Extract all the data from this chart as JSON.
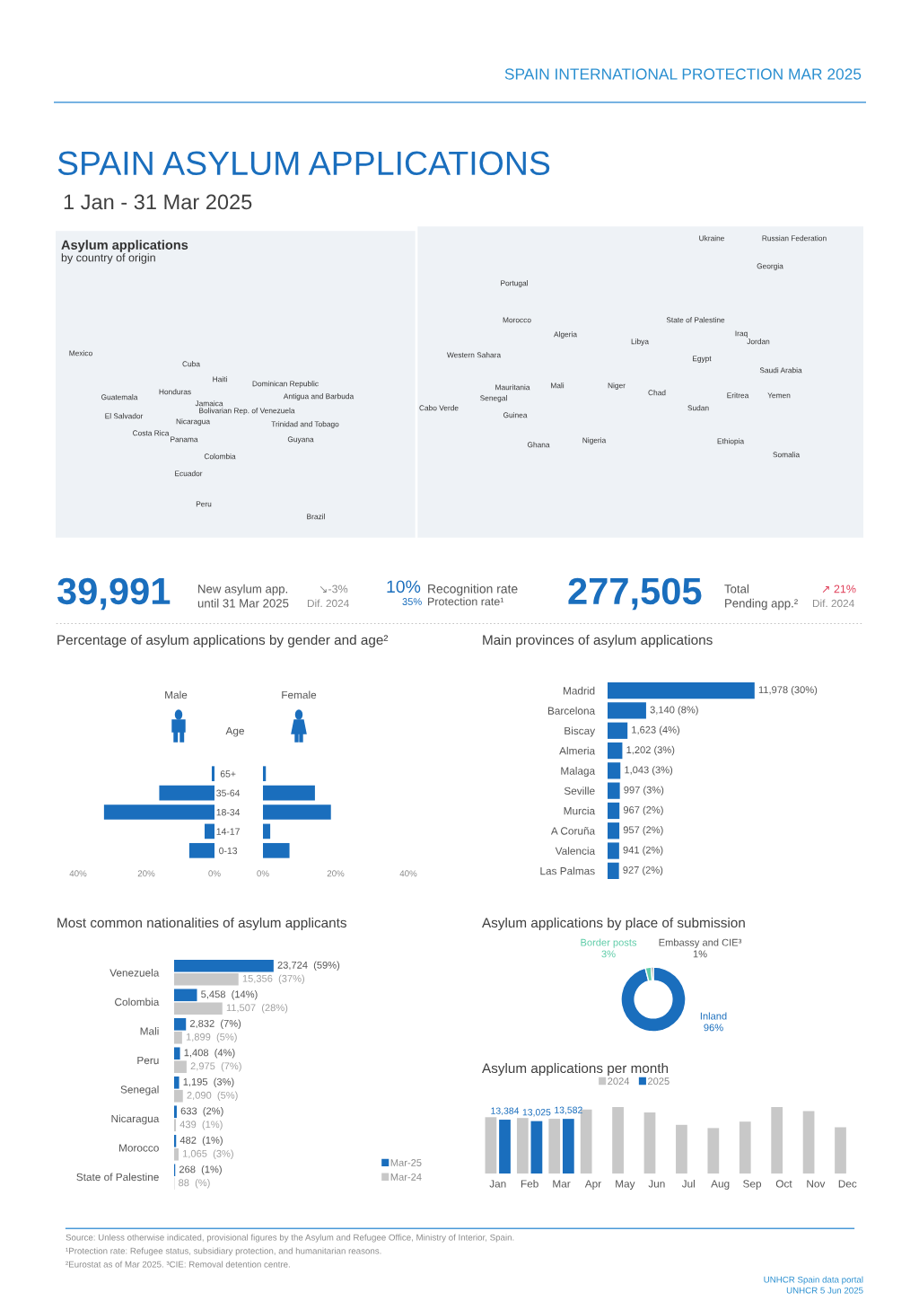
{
  "chart_data": [
    {
      "type": "other",
      "title": "SPAIN ASYLUM APPLICATIONS",
      "subtitle": "1 Jan - 31 Mar 2025",
      "annotations": [
        "SPAIN INTERNATIONAL PROTECTION MAR 2025"
      ]
    },
    {
      "type": "other",
      "title": "Asylum applications",
      "subtitle": "by country of origin",
      "annotations": [
        "Mexico",
        "Cuba",
        "Haiti",
        "Dominican Republic",
        "Honduras",
        "Guatemala",
        "Antigua and Barbuda",
        "Jamaica",
        "Bolivarian Rep. of Venezuela",
        "El Salvador",
        "Nicaragua",
        "Costa Rica",
        "Panama",
        "Trinidad and Tobago",
        "Guyana",
        "Colombia",
        "Ecuador",
        "Peru",
        "Brazil",
        "Portugal",
        "Ukraine",
        "Russian Federation",
        "Georgia",
        "Morocco",
        "Algeria",
        "Libya",
        "Egypt",
        "State of Palestine",
        "Iraq",
        "Jordan",
        "Western Sahara",
        "Mauritania",
        "Mali",
        "Niger",
        "Chad",
        "Sudan",
        "Eritrea",
        "Yemen",
        "Senegal",
        "Cabo Verde",
        "Guinea",
        "Ghana",
        "Nigeria",
        "Ethiopia",
        "Somalia",
        "Saudi Arabia"
      ]
    },
    {
      "type": "other",
      "annotations": [
        "39,991",
        "New asylum app.",
        "until 31 Mar 2025",
        "↘-3%",
        "Dif. 2024",
        "10%",
        "Recognition rate",
        "35%",
        "Protection rate¹",
        "277,505",
        "Total",
        "Pending app.²",
        "↗ 21%",
        "Dif. 2024"
      ]
    },
    {
      "type": "bar",
      "orientation": "horizontal",
      "title": "Percentage of asylum applications by gender and age²",
      "subtitle": "Male",
      "categories": [
        null,
        null,
        null,
        null,
        null
      ],
      "values": [
        0.8,
        16.2,
        32.4,
        2.9,
        7.4
      ],
      "color": "#1a6ebd",
      "xlim": [
        40,
        0
      ],
      "xticks": [
        {
          "value": 40,
          "label": "40%"
        },
        {
          "value": 20,
          "label": "20%"
        },
        {
          "value": 0,
          "label": "0%"
        }
      ],
      "tick_labels": "x"
    },
    {
      "type": "bar",
      "orientation": "horizontal",
      "title": "Female",
      "annotations": [
        "Age"
      ],
      "categories": [
        "65+",
        "35-64",
        "18-34",
        "14-17",
        "0-13"
      ],
      "values": [
        0.8,
        14.3,
        18.7,
        2.0,
        7.3
      ],
      "color": "#1a6ebd",
      "xlim": [
        0,
        40
      ],
      "xticks": [
        {
          "value": 0,
          "label": "0%"
        },
        {
          "value": 20,
          "label": "20%"
        },
        {
          "value": 40,
          "label": "40%"
        }
      ]
    },
    {
      "type": "bar",
      "orientation": "horizontal",
      "title": "Main provinces of asylum applications",
      "categories": [
        "Madrid",
        "Barcelona",
        "Biscay",
        "Almeria",
        "Malaga",
        "Seville",
        "Murcia",
        "A Coruña",
        "Valencia",
        "Las Palmas"
      ],
      "values": [
        11978,
        3140,
        1623,
        1202,
        1043,
        997,
        967,
        957,
        941,
        927
      ],
      "value_labels": [
        "11,978 (30%)",
        "3,140 (8%)",
        "1,623 (4%)",
        "1,202 (3%)",
        "1,043 (3%)",
        "997 (3%)",
        "967 (2%)",
        "957 (2%)",
        "941 (2%)",
        "927 (2%)"
      ],
      "color": "#1a6ebd",
      "tick_labels": "y"
    },
    {
      "type": "bar",
      "orientation": "horizontal",
      "title": "Most common nationalities of asylum applicants",
      "categories": [
        "Venezuela",
        "Colombia",
        "Mali",
        "Peru",
        "Senegal",
        "Nicaragua",
        "Morocco",
        "State of Palestine"
      ],
      "legend": "bottom right",
      "tick_labels": "y",
      "series": [
        {
          "name": "Mar-25",
          "color": "#1a6ebd",
          "values": [
            23724,
            5458,
            2832,
            1408,
            1195,
            633,
            482,
            268
          ],
          "value_labels": [
            "23,724  (59%)",
            "5,458  (14%)",
            "2,832  (7%)",
            "1,408  (4%)",
            "1,195  (3%)",
            "633  (2%)",
            "482  (1%)",
            "268  (1%)"
          ]
        },
        {
          "name": "Mar-24",
          "color": "#c8c8c8",
          "values": [
            15356,
            11507,
            1899,
            2975,
            2090,
            439,
            1065,
            88
          ],
          "value_labels": [
            "15,356  (37%)",
            "11,507  (28%)",
            "1,899  (5%)",
            "2,975  (7%)",
            "2,090  (5%)",
            "439  (1%)",
            "1,065  (3%)",
            "88  (%)"
          ]
        }
      ]
    },
    {
      "type": "donut",
      "title": "Asylum applications by place of submission",
      "categories": [
        "Inland",
        "Border posts",
        "Embassy and CIE³"
      ],
      "values": [
        96,
        3,
        1
      ],
      "value_labels": [
        "96%",
        "3%",
        "1%"
      ],
      "colors": [
        "#1a6ebd",
        "#5fcca8",
        "#666666"
      ]
    },
    {
      "type": "bar",
      "title": "Asylum applications per month",
      "categories": [
        "Jan",
        "Feb",
        "Mar",
        "Apr",
        "May",
        "Jun",
        "Jul",
        "Aug",
        "Sep",
        "Oct",
        "Nov",
        "Dec"
      ],
      "legend": "top",
      "tick_labels": "x",
      "series": [
        {
          "name": "2024",
          "color": "#c8c8c8",
          "values": [
            14000,
            13800,
            13600,
            15900,
            16500,
            15200,
            12100,
            11300,
            12900,
            16500,
            15500,
            11500
          ]
        },
        {
          "name": "2025",
          "color": "#1a6ebd",
          "values": [
            13384,
            13025,
            13582,
            null,
            null,
            null,
            null,
            null,
            null,
            null,
            null,
            null
          ],
          "value_labels": [
            "13,384",
            "13,025",
            "13,582",
            null,
            null,
            null,
            null,
            null,
            null,
            null,
            null,
            null
          ]
        }
      ]
    },
    {
      "type": "other",
      "annotations": [
        "Source: Unless otherwise indicated, provisional figures by the Asylum and Refugee Office, Ministry of Interior, Spain.",
        "¹Protection rate: Refugee status, subsidiary protection, and humanitarian reasons.",
        "²Eurostat as of Mar 2025. ³CIE: Removal detention centre.",
        "UNHCR Spain data portal",
        "UNHCR 5 Jun 2025"
      ]
    }
  ]
}
